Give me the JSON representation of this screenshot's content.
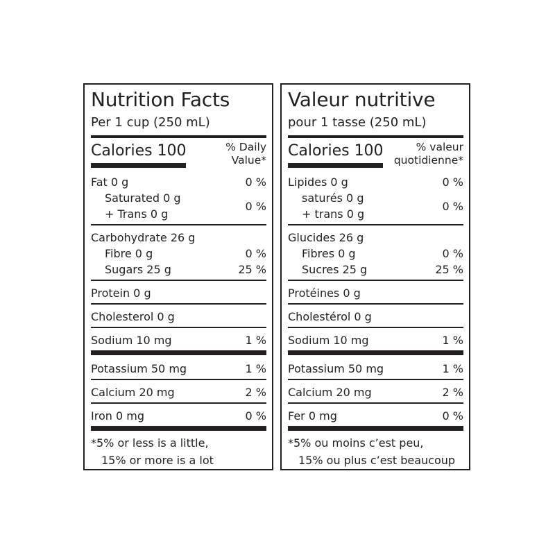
{
  "en": {
    "title": "Nutrition Facts",
    "serving": "Per 1 cup (250 mL)",
    "calories": "Calories 100",
    "dv_header_1": "% Daily",
    "dv_header_2": "Value*",
    "fat": "Fat 0 g",
    "fat_dv": "0 %",
    "saturated": "Saturated 0 g",
    "trans": "+ Trans 0 g",
    "sat_trans_dv": "0 %",
    "carb": "Carbohydrate 26 g",
    "fibre": "Fibre 0 g",
    "fibre_dv": "0 %",
    "sugars": "Sugars 25 g",
    "sugars_dv": "25 %",
    "protein": "Protein 0 g",
    "cholesterol": "Cholesterol 0 g",
    "sodium": "Sodium 10 mg",
    "sodium_dv": "1 %",
    "potassium": "Potassium 50 mg",
    "potassium_dv": "1 %",
    "calcium": "Calcium 20 mg",
    "calcium_dv": "2 %",
    "iron": "Iron 0 mg",
    "iron_dv": "0 %",
    "footnote_1": "*5% or less is a little,",
    "footnote_2": "15% or more is a lot"
  },
  "fr": {
    "title": "Valeur nutritive",
    "serving": "pour 1 tasse (250 mL)",
    "calories": "Calories 100",
    "dv_header_1": "% valeur",
    "dv_header_2": "quotidienne*",
    "fat": "Lipides 0 g",
    "fat_dv": "0 %",
    "saturated": "saturés 0 g",
    "trans": "+ trans 0 g",
    "sat_trans_dv": "0 %",
    "carb": "Glucides 26 g",
    "fibre": "Fibres 0 g",
    "fibre_dv": "0 %",
    "sugars": "Sucres 25 g",
    "sugars_dv": "25 %",
    "protein": "Protéines 0 g",
    "cholesterol": "Cholestérol 0 g",
    "sodium": "Sodium 10 mg",
    "sodium_dv": "1 %",
    "potassium": "Potassium 50 mg",
    "potassium_dv": "1 %",
    "calcium": "Calcium 20 mg",
    "calcium_dv": "2 %",
    "iron": "Fer 0 mg",
    "iron_dv": "0 %",
    "footnote_1": "*5% ou moins c’est peu,",
    "footnote_2": "15% ou plus c’est beaucoup"
  }
}
